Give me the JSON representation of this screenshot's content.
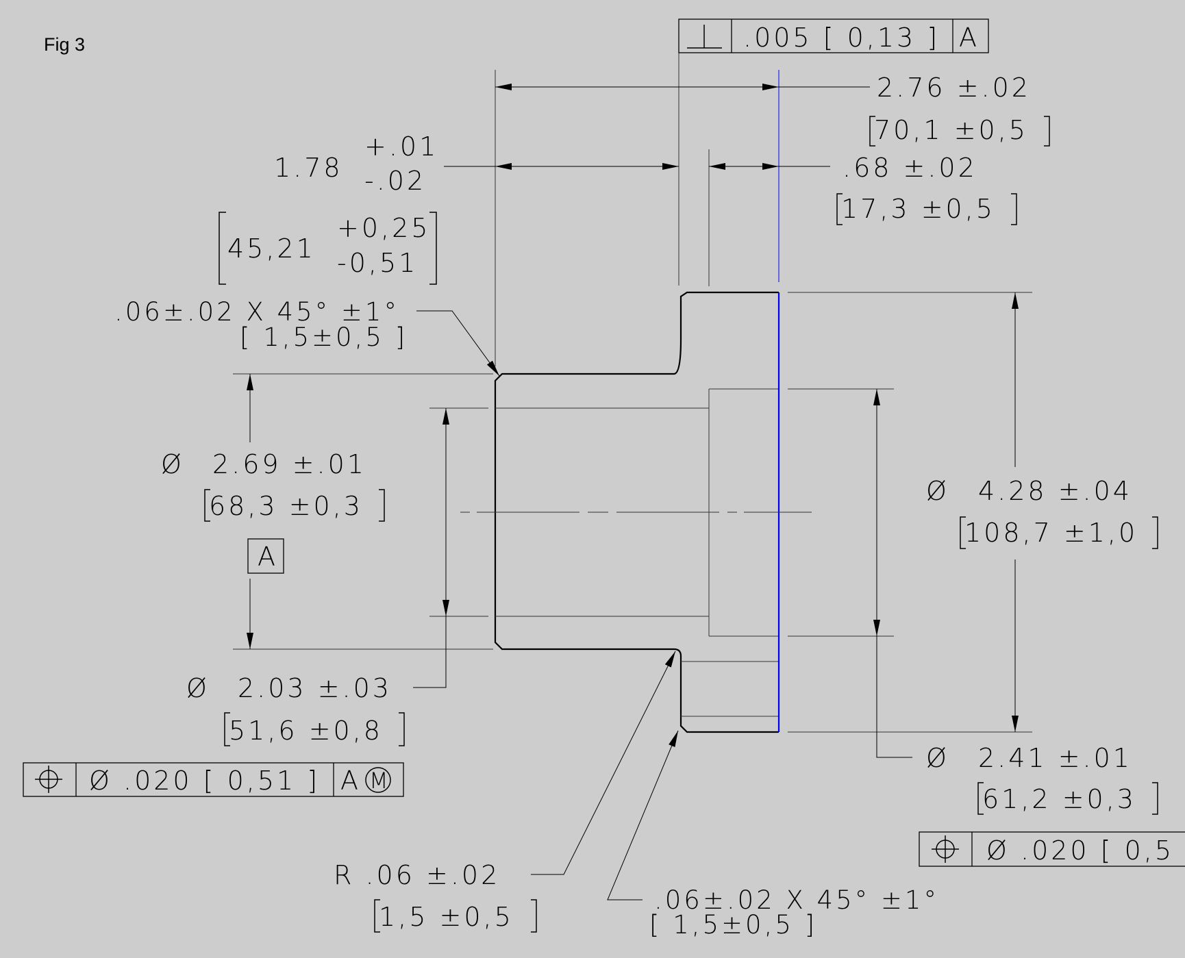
{
  "figure_label": "Fig 3",
  "colors": {
    "background": "#cdcdcd",
    "line": "#000000",
    "datum_plane": "#0000ff"
  },
  "top_fcf": {
    "symbol": "⊥",
    "tolerance": ".005 [ 0,13 ]",
    "datum": "A"
  },
  "dims": {
    "overall_length": {
      "value": "2.76 ±.02",
      "metric": "70,1  ±0,5"
    },
    "shaft_length": {
      "nominal": "1.78",
      "upper": "+.01",
      "lower": "-.02",
      "metric_nominal": "45,21",
      "metric_upper": "+0,25",
      "metric_lower": "-0,51"
    },
    "flange_thickness": {
      "value": ".68 ±.02",
      "metric": "17,3  ±0,5"
    },
    "top_chamfer": {
      "value": ".06±.02 X 45° ±1°",
      "metric": "[ 1,5±0,5 ]"
    },
    "shaft_dia": {
      "symbol": "Ø",
      "value": "2.69 ±.01",
      "metric": "68,3  ±0,3"
    },
    "datum_a": "A",
    "bore_dia": {
      "symbol": "Ø",
      "value": "2.03 ±.03",
      "metric": "51,6  ±0,8"
    },
    "flange_dia": {
      "symbol": "Ø",
      "value": "4.28 ±.04",
      "metric": "108,7  ±1,0"
    },
    "counterbore_dia": {
      "symbol": "Ø",
      "value": "2.41 ±.01",
      "metric": "61,2  ±0,3"
    },
    "fillet_radius": {
      "value": "R  .06 ±.02",
      "metric": "1,5  ±0,5"
    },
    "bottom_chamfer": {
      "value": ".06±.02 X 45° ±1°",
      "metric": "[ 1,5±0,5 ]"
    }
  },
  "left_fcf": {
    "symbol": "⌖",
    "tolerance": "Ø .020 [ 0,51 ]",
    "datum": "A",
    "modifier": "M"
  },
  "right_fcf": {
    "symbol": "⌖",
    "tolerance": "Ø .020 [ 0,5"
  }
}
